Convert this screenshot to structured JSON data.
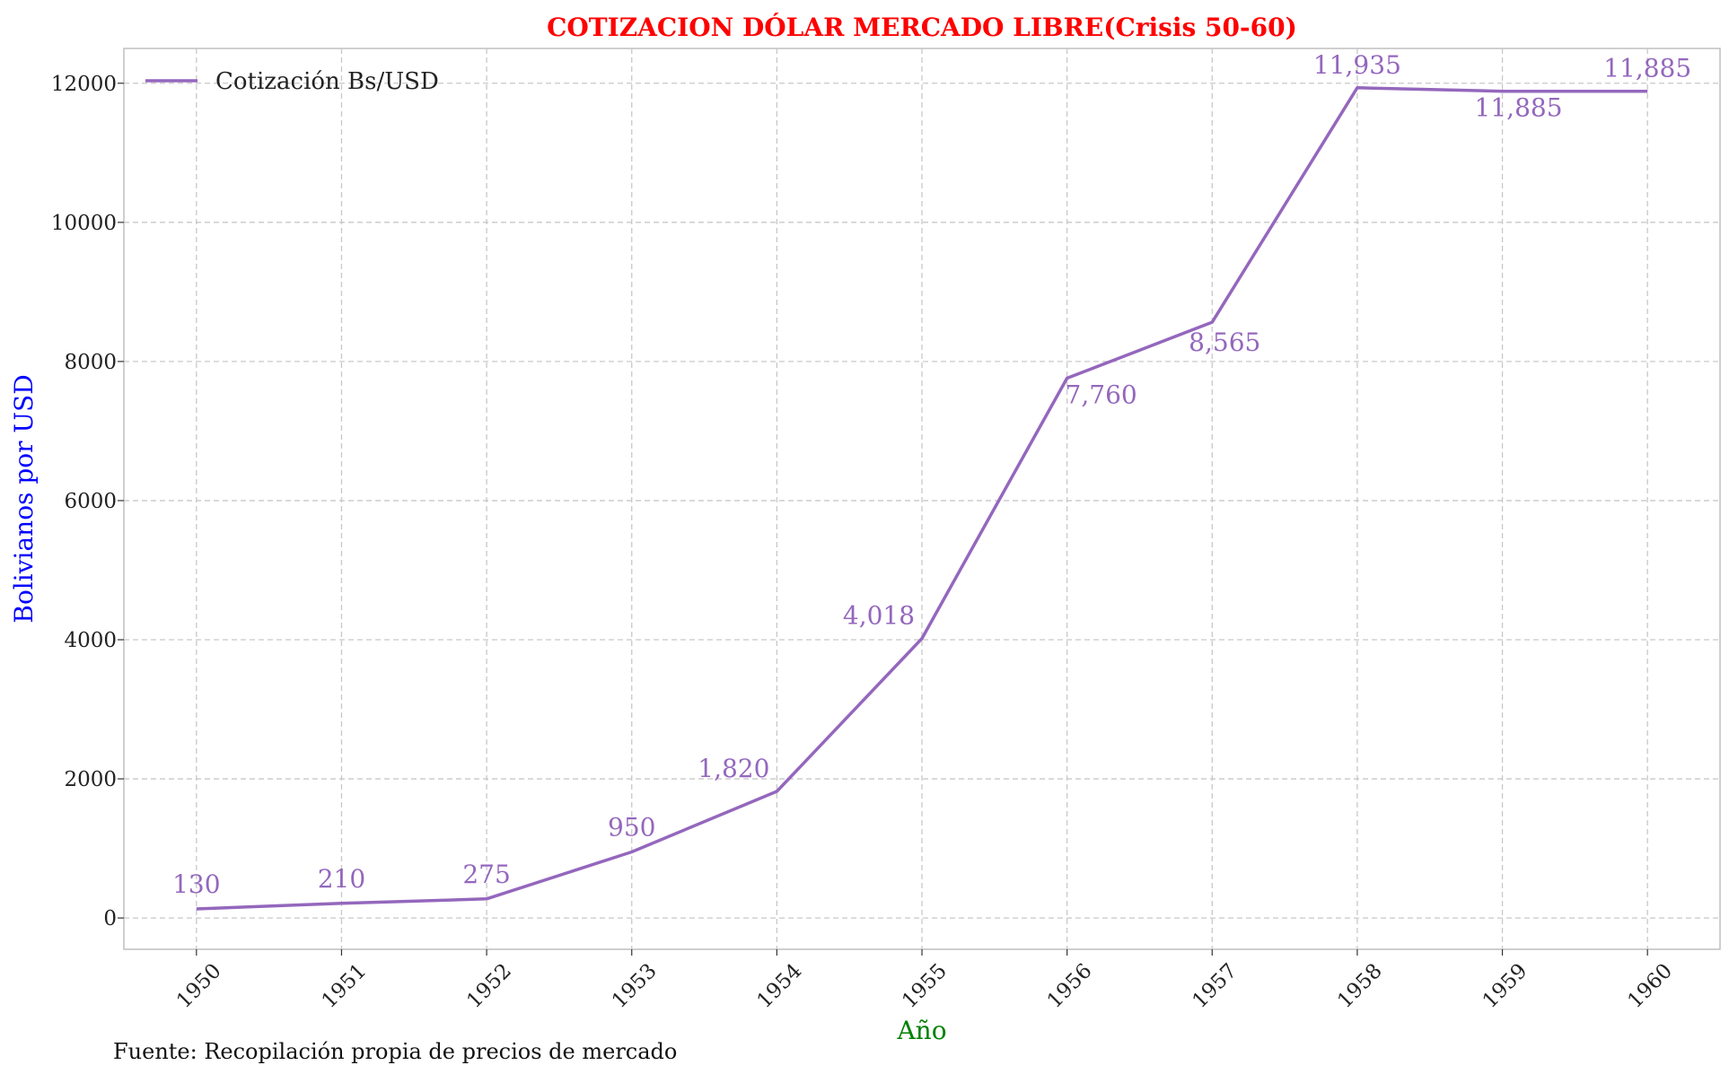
{
  "chart_data": {
    "type": "line",
    "title": "COTIZACION DÓLAR MERCADO LIBRE(Crisis 50-60)",
    "xlabel": "Año",
    "ylabel": "Bolivianos por USD",
    "x": [
      1950,
      1951,
      1952,
      1953,
      1954,
      1955,
      1956,
      1957,
      1958,
      1959,
      1960
    ],
    "x_tick_labels": [
      "1950",
      "1951",
      "1952",
      "1953",
      "1954",
      "1955",
      "1956",
      "1957",
      "1958",
      "1959",
      "1960"
    ],
    "y_ticks": [
      0,
      2000,
      4000,
      6000,
      8000,
      10000,
      12000
    ],
    "y_tick_labels": [
      "0",
      "2000",
      "4000",
      "6000",
      "8000",
      "10000",
      "12000"
    ],
    "ylim": [
      -450,
      12500
    ],
    "xlim": [
      1949.5,
      1960.5
    ],
    "series": [
      {
        "name": "Cotización Bs/USD",
        "values": [
          130,
          210,
          275,
          950,
          1820,
          4018,
          7760,
          8565,
          11935,
          11885,
          11885
        ],
        "data_labels": [
          "130",
          "210",
          "275",
          "950",
          "1,820",
          "4,018",
          "7,760",
          "8,565",
          "11,935",
          "11,885",
          "11,885"
        ]
      }
    ],
    "grid": true,
    "legend_position": "top-left",
    "source_note": "Fuente: Recopilación propia de precios de mercado"
  },
  "colors": {
    "series": "#9467bd",
    "title": "#ff0000",
    "ylabel": "#0000ff",
    "xlabel": "#008000",
    "grid": "#c8c8c8",
    "frame": "#bfbfbf"
  }
}
